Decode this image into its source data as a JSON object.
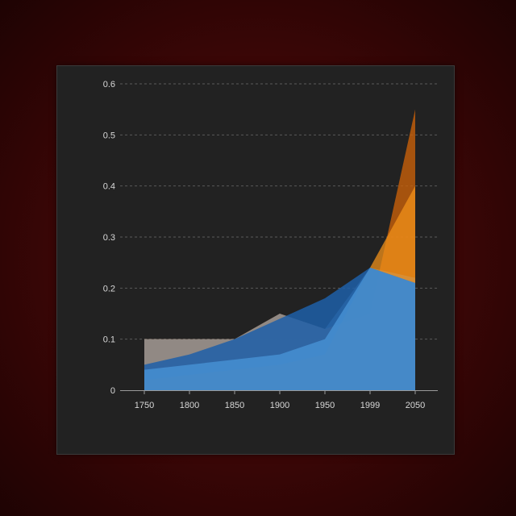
{
  "chart_data": {
    "type": "area",
    "x": [
      "1750",
      "1800",
      "1850",
      "1900",
      "1950",
      "1999",
      "2050"
    ],
    "xticks": [
      "1750",
      "1800",
      "1850",
      "1900",
      "1950",
      "1999",
      "2050"
    ],
    "ylim": [
      0,
      0.6
    ],
    "yticks": [
      "0",
      "0.1",
      "0.2",
      "0.3",
      "0.4",
      "0.5",
      "0.6"
    ],
    "grid": "horizontal dashed",
    "legend": "none",
    "series": [
      {
        "color": "#c8600a",
        "opacity": 0.8,
        "values": [
          0.1,
          0.1,
          0.1,
          0.15,
          0.12,
          0.15,
          0.55
        ]
      },
      {
        "color": "#7fb6e6",
        "opacity": 0.55,
        "values": [
          0.1,
          0.1,
          0.1,
          0.15,
          0.12,
          0.24,
          0.22
        ]
      },
      {
        "color": "#f0901a",
        "opacity": 0.75,
        "values": [
          0.02,
          0.03,
          0.04,
          0.05,
          0.07,
          0.24,
          0.4
        ]
      },
      {
        "color": "#1d5fa8",
        "opacity": 0.85,
        "values": [
          0.05,
          0.07,
          0.1,
          0.14,
          0.18,
          0.24,
          0.21
        ]
      },
      {
        "color": "#4a96d8",
        "opacity": 0.75,
        "values": [
          0.04,
          0.05,
          0.06,
          0.07,
          0.1,
          0.24,
          0.21
        ]
      }
    ]
  }
}
